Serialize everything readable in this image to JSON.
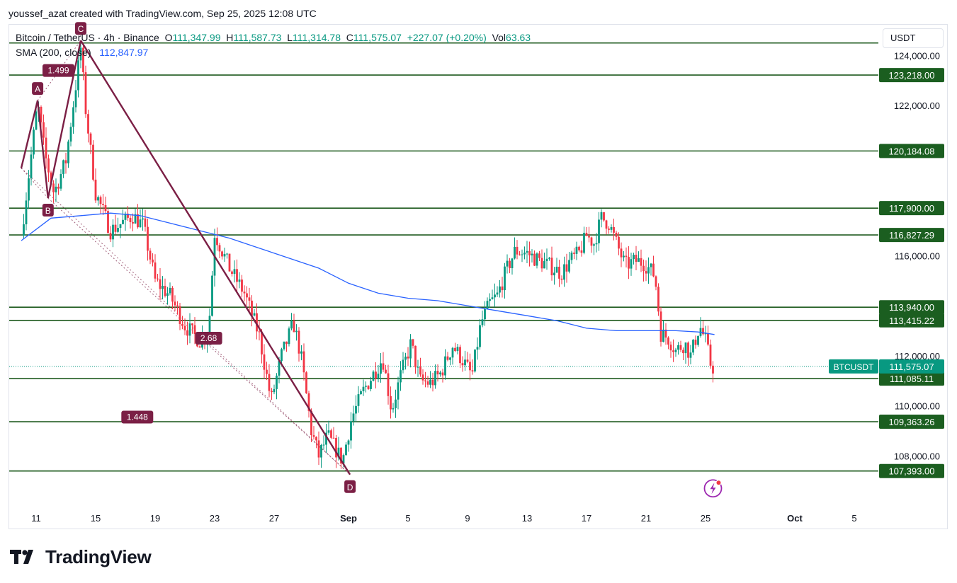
{
  "header": {
    "author_line": "youssef_azat created with TradingView.com, Sep 25, 2025 12:08 UTC"
  },
  "legend": {
    "symbol": "Bitcoin / TetherUS · 4h · Binance",
    "open_label": "O",
    "open": "111,347.99",
    "high_label": "H",
    "high": "111,587.73",
    "low_label": "L",
    "low": "111,314.78",
    "close_label": "C",
    "close": "111,575.07",
    "change": "+227.07 (+0.20%)",
    "vol_label": "Vol",
    "vol": "63.63",
    "sma_label": "SMA (200, close)",
    "sma_value": "112,847.97"
  },
  "currency_button": "USDT",
  "brand": {
    "name": "TradingView",
    "icon": "tradingview-logo-icon"
  },
  "colors": {
    "up": "#089981",
    "down": "#f23645",
    "sma": "#2962ff",
    "hline": "#1e5a1e",
    "hline_label_bg": "#1b5e20",
    "pattern": "#7b1f45",
    "last_price_bg": "#089981"
  },
  "chart_data": {
    "type": "candlestick",
    "interval": "4h",
    "ylim": [
      106000,
      125200
    ],
    "y_ticks": [
      {
        "value": 124000,
        "label": "124,000.00"
      },
      {
        "value": 122000,
        "label": "122,000.00"
      },
      {
        "value": 116000,
        "label": "116,000.00"
      },
      {
        "value": 112000,
        "label": "112,000.00"
      },
      {
        "value": 110000,
        "label": "110,000.00"
      },
      {
        "value": 108000,
        "label": "108,000.00"
      }
    ],
    "x_ticks": [
      {
        "day": 11,
        "label": "11"
      },
      {
        "day": 15,
        "label": "15"
      },
      {
        "day": 19,
        "label": "19"
      },
      {
        "day": 23,
        "label": "23"
      },
      {
        "day": 27,
        "label": "27"
      },
      {
        "day": 32,
        "label": "Sep",
        "bold": true
      },
      {
        "day": 36,
        "label": "5"
      },
      {
        "day": 40,
        "label": "9"
      },
      {
        "day": 44,
        "label": "13"
      },
      {
        "day": 48,
        "label": "17"
      },
      {
        "day": 52,
        "label": "21"
      },
      {
        "day": 56,
        "label": "25"
      },
      {
        "day": 62,
        "label": "Oct",
        "bold": true
      },
      {
        "day": 66,
        "label": "5"
      }
    ],
    "horizontal_levels": [
      {
        "value": 124500,
        "label": ""
      },
      {
        "value": 123218,
        "label": "123,218.00"
      },
      {
        "value": 120184.08,
        "label": "120,184.08"
      },
      {
        "value": 117900,
        "label": "117,900.00"
      },
      {
        "value": 116827.29,
        "label": "116,827.29"
      },
      {
        "value": 113940,
        "label": "113,940.00"
      },
      {
        "value": 113415.22,
        "label": "113,415.22"
      },
      {
        "value": 111085.11,
        "label": "111,085.11"
      },
      {
        "value": 109363.26,
        "label": "109,363.26"
      },
      {
        "value": 107393,
        "label": "107,393.00"
      }
    ],
    "last_price": {
      "value": 111575.07,
      "label": "111,575.07",
      "symbol": "BTCUSDT"
    },
    "path_anchors": [
      {
        "day": 10.0,
        "price": 116800
      },
      {
        "day": 11.1,
        "price": 122100
      },
      {
        "day": 11.6,
        "price": 120000
      },
      {
        "day": 12.2,
        "price": 118500
      },
      {
        "day": 13.0,
        "price": 119800
      },
      {
        "day": 13.6,
        "price": 122500
      },
      {
        "day": 14.0,
        "price": 124300
      },
      {
        "day": 14.3,
        "price": 122000
      },
      {
        "day": 15.0,
        "price": 118500
      },
      {
        "day": 16.0,
        "price": 117000
      },
      {
        "day": 17.5,
        "price": 117600
      },
      {
        "day": 18.2,
        "price": 117200
      },
      {
        "day": 19.0,
        "price": 115000
      },
      {
        "day": 20.0,
        "price": 114400
      },
      {
        "day": 21.0,
        "price": 113200
      },
      {
        "day": 22.0,
        "price": 112600
      },
      {
        "day": 22.6,
        "price": 113000
      },
      {
        "day": 23.0,
        "price": 116900
      },
      {
        "day": 24.0,
        "price": 115500
      },
      {
        "day": 25.0,
        "price": 114500
      },
      {
        "day": 26.0,
        "price": 112800
      },
      {
        "day": 26.8,
        "price": 110200
      },
      {
        "day": 27.5,
        "price": 112000
      },
      {
        "day": 28.3,
        "price": 113300
      },
      {
        "day": 28.8,
        "price": 112000
      },
      {
        "day": 29.5,
        "price": 109000
      },
      {
        "day": 30.0,
        "price": 108000
      },
      {
        "day": 30.6,
        "price": 108800
      },
      {
        "day": 31.2,
        "price": 108200
      },
      {
        "day": 31.6,
        "price": 107800
      },
      {
        "day": 32.2,
        "price": 109500
      },
      {
        "day": 33.0,
        "price": 110600
      },
      {
        "day": 33.7,
        "price": 111300
      },
      {
        "day": 34.3,
        "price": 111900
      },
      {
        "day": 34.9,
        "price": 109800
      },
      {
        "day": 35.5,
        "price": 111200
      },
      {
        "day": 36.2,
        "price": 112500
      },
      {
        "day": 36.8,
        "price": 111000
      },
      {
        "day": 37.5,
        "price": 110900
      },
      {
        "day": 38.2,
        "price": 111300
      },
      {
        "day": 39.0,
        "price": 112400
      },
      {
        "day": 39.7,
        "price": 111800
      },
      {
        "day": 40.3,
        "price": 111200
      },
      {
        "day": 40.9,
        "price": 113300
      },
      {
        "day": 41.5,
        "price": 114100
      },
      {
        "day": 42.0,
        "price": 114400
      },
      {
        "day": 42.6,
        "price": 115400
      },
      {
        "day": 43.2,
        "price": 116200
      },
      {
        "day": 44.0,
        "price": 116100
      },
      {
        "day": 44.8,
        "price": 115800
      },
      {
        "day": 45.5,
        "price": 115600
      },
      {
        "day": 46.3,
        "price": 115300
      },
      {
        "day": 46.9,
        "price": 115800
      },
      {
        "day": 47.5,
        "price": 116100
      },
      {
        "day": 48.0,
        "price": 116800
      },
      {
        "day": 48.5,
        "price": 116500
      },
      {
        "day": 49.0,
        "price": 117500
      },
      {
        "day": 49.5,
        "price": 117300
      },
      {
        "day": 50.0,
        "price": 116500
      },
      {
        "day": 50.6,
        "price": 115600
      },
      {
        "day": 51.3,
        "price": 115800
      },
      {
        "day": 51.9,
        "price": 115700
      },
      {
        "day": 52.6,
        "price": 115200
      },
      {
        "day": 53.0,
        "price": 112900
      },
      {
        "day": 53.5,
        "price": 112700
      },
      {
        "day": 54.0,
        "price": 112200
      },
      {
        "day": 54.6,
        "price": 112500
      },
      {
        "day": 55.0,
        "price": 112000
      },
      {
        "day": 55.6,
        "price": 113200
      },
      {
        "day": 56.0,
        "price": 112600
      },
      {
        "day": 56.4,
        "price": 111500
      },
      {
        "day": 56.6,
        "price": 111575
      }
    ],
    "sma_anchors": [
      {
        "day": 10.0,
        "price": 116600
      },
      {
        "day": 12.0,
        "price": 117500
      },
      {
        "day": 14.0,
        "price": 117600
      },
      {
        "day": 16.0,
        "price": 117700
      },
      {
        "day": 18.0,
        "price": 117600
      },
      {
        "day": 20.0,
        "price": 117300
      },
      {
        "day": 22.0,
        "price": 117000
      },
      {
        "day": 24.0,
        "price": 116700
      },
      {
        "day": 26.0,
        "price": 116300
      },
      {
        "day": 28.0,
        "price": 115900
      },
      {
        "day": 30.0,
        "price": 115500
      },
      {
        "day": 32.0,
        "price": 114900
      },
      {
        "day": 34.0,
        "price": 114500
      },
      {
        "day": 36.0,
        "price": 114300
      },
      {
        "day": 38.0,
        "price": 114200
      },
      {
        "day": 40.0,
        "price": 114000
      },
      {
        "day": 42.0,
        "price": 113800
      },
      {
        "day": 44.0,
        "price": 113600
      },
      {
        "day": 46.0,
        "price": 113400
      },
      {
        "day": 48.0,
        "price": 113100
      },
      {
        "day": 50.0,
        "price": 113000
      },
      {
        "day": 52.0,
        "price": 113000
      },
      {
        "day": 54.0,
        "price": 113000
      },
      {
        "day": 55.5,
        "price": 112950
      },
      {
        "day": 56.6,
        "price": 112848
      }
    ],
    "pattern": {
      "points": [
        {
          "label": "",
          "day": 10.0,
          "price": 119500
        },
        {
          "label": "A",
          "day": 11.1,
          "price": 122200
        },
        {
          "label": "B",
          "day": 11.8,
          "price": 118300
        },
        {
          "label": "C",
          "day": 14.0,
          "price": 124600
        },
        {
          "label": "D",
          "day": 32.1,
          "price": 107250
        }
      ],
      "ratios": [
        {
          "label": "1.499",
          "day": 12.5,
          "price": 123400
        },
        {
          "label": "2.68",
          "day": 22.6,
          "price": 112700
        },
        {
          "label": "1.448",
          "day": 17.8,
          "price": 109550
        }
      ]
    },
    "annotations": [
      {
        "label": "lightning-icon",
        "day": 56.5,
        "price": 106700
      }
    ]
  }
}
